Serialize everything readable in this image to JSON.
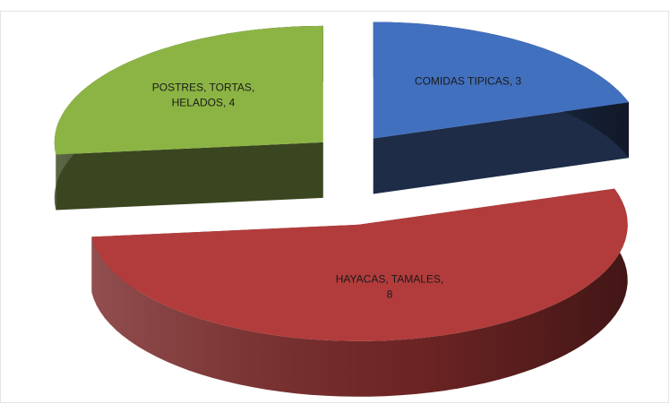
{
  "chart_data": {
    "type": "pie3d",
    "values": [
      3,
      8,
      4
    ],
    "value_labels": [
      [
        "COMIDAS TIPICAS, 3"
      ],
      [
        "HAYACAS, TAMALES,",
        "8"
      ],
      [
        "POSTRES, TORTAS,",
        "HELADOS, 4"
      ]
    ],
    "colors": [
      "#4170bf",
      "#b23c3c",
      "#8cb444"
    ],
    "side_colors": [
      "#1e2c48",
      "#7a2828",
      "#3a4620"
    ],
    "exploded": true
  }
}
